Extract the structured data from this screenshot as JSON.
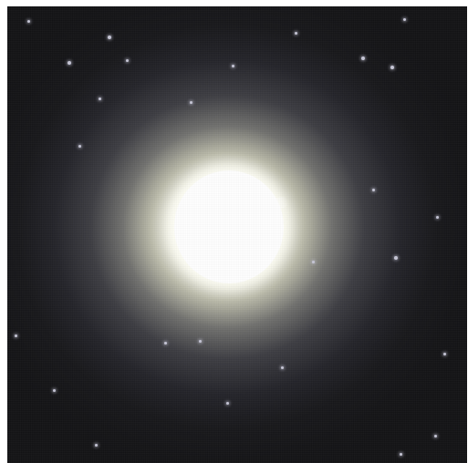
{
  "image": {
    "subject": "elliptical-galaxy",
    "colors": {
      "background": "#141416",
      "core": "#ffffff",
      "halo": "#d7d7c3",
      "frame": "#ffffff",
      "stars": "#c8c8d8"
    }
  }
}
